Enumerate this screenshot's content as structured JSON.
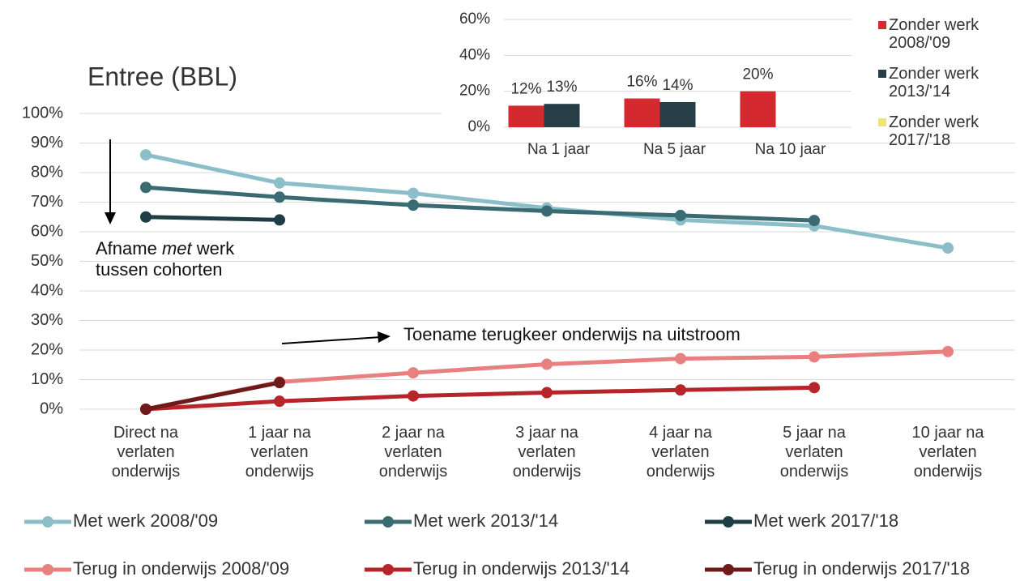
{
  "chart_data": [
    {
      "type": "line",
      "title": "Entree (BBL)",
      "categories": [
        "Direct na verlaten onderwijs",
        "1 jaar na verlaten onderwijs",
        "2 jaar na verlaten onderwijs",
        "3 jaar na verlaten onderwijs",
        "4 jaar na verlaten onderwijs",
        "5 jaar na verlaten onderwijs",
        "10 jaar na verlaten onderwijs"
      ],
      "series": [
        {
          "name": "Met werk 2008/'09",
          "color": "#8bbec8",
          "values": [
            86,
            76.5,
            73,
            68,
            64,
            62,
            54.5
          ]
        },
        {
          "name": "Met werk 2013/'14",
          "color": "#3a6a72",
          "values": [
            75,
            71.7,
            69,
            67,
            65.5,
            63.8,
            null
          ]
        },
        {
          "name": "Met werk 2017/'18",
          "color": "#1f3d44",
          "values": [
            65,
            64,
            null,
            null,
            null,
            null,
            null
          ]
        },
        {
          "name": "Terug in onderwijs 2008/'09",
          "color": "#e88080",
          "values": [
            0,
            9.2,
            12.3,
            15.2,
            17.1,
            17.7,
            19.5
          ]
        },
        {
          "name": "Terug in onderwijs 2013/'14",
          "color": "#b5252a",
          "values": [
            0,
            2.7,
            4.5,
            5.6,
            6.5,
            7.3,
            null
          ]
        },
        {
          "name": "Terug in onderwijs 2017/'18",
          "color": "#6e1a1a",
          "values": [
            0,
            9,
            null,
            null,
            null,
            null,
            null
          ]
        }
      ],
      "ylim": [
        0,
        100
      ],
      "yticks": [
        {
          "value": 0,
          "label": "0%"
        },
        {
          "value": 10,
          "label": "10%"
        },
        {
          "value": 20,
          "label": "20%"
        },
        {
          "value": 30,
          "label": "30%"
        },
        {
          "value": 40,
          "label": "40%"
        },
        {
          "value": 50,
          "label": "50%"
        },
        {
          "value": 60,
          "label": "60%"
        },
        {
          "value": 70,
          "label": "70%"
        },
        {
          "value": 80,
          "label": "80%"
        },
        {
          "value": 90,
          "label": "90%"
        },
        {
          "value": 100,
          "label": "100%"
        }
      ],
      "grid": true,
      "legend": "bottom",
      "annotations": [
        [
          "Afname",
          "met",
          "werk",
          "tussen cohorten"
        ],
        [
          "Toename terugkeer onderwijs na uitstroom"
        ]
      ]
    },
    {
      "type": "bar",
      "categories": [
        "Na 1 jaar",
        "Na 5 jaar",
        "Na 10 jaar"
      ],
      "series": [
        {
          "name": "Zonder werk 2008/'09",
          "color": "#d42a2f",
          "values": [
            12,
            16,
            20
          ],
          "value_labels": [
            "12%",
            "16%",
            "20%"
          ]
        },
        {
          "name": "Zonder werk 2013/'14",
          "color": "#263f47",
          "values": [
            13,
            14,
            null
          ],
          "value_labels": [
            "13%",
            "14%",
            null
          ]
        },
        {
          "name": "Zonder werk 2017/'18",
          "color": "#f2e27a",
          "values": [
            null,
            null,
            null
          ]
        }
      ],
      "ylim": [
        0,
        60
      ],
      "yticks": [
        {
          "value": 0,
          "label": "0%"
        },
        {
          "value": 20,
          "label": "20%"
        },
        {
          "value": 40,
          "label": "40%"
        },
        {
          "value": 60,
          "label": "60%"
        }
      ],
      "grid": true,
      "legend": "right"
    }
  ]
}
